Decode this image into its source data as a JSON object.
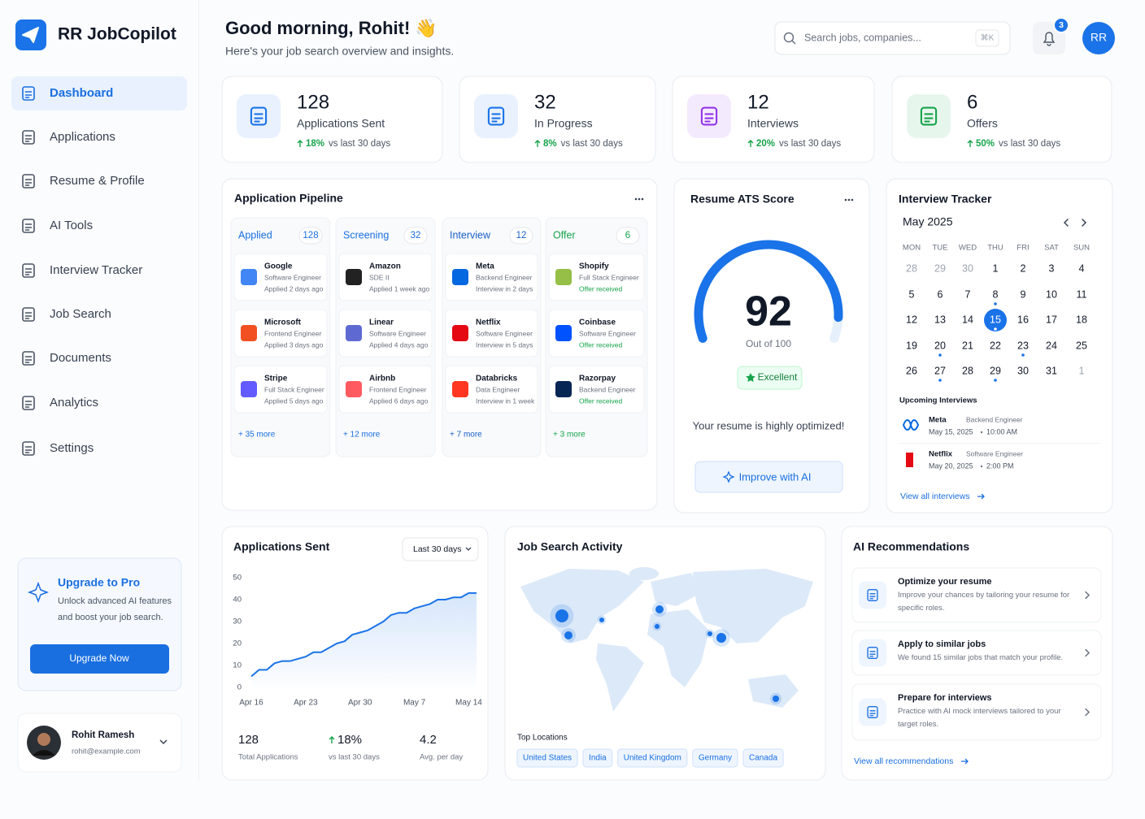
{
  "brand": "RR JobCopilot",
  "nav": [
    "Dashboard",
    "Applications",
    "Resume & Profile",
    "AI Tools",
    "Interview Tracker",
    "Job Search",
    "Documents",
    "Analytics",
    "Settings"
  ],
  "upgrade": {
    "title": "Upgrade to Pro",
    "text": "Unlock advanced AI features and boost your job search.",
    "button": "Upgrade Now"
  },
  "user": {
    "name": "Rohit Ramesh",
    "email": "rohit@example.com"
  },
  "header": {
    "greeting": "Good morning, Rohit! 👋",
    "subtitle": "Here's your job search overview and insights.",
    "search_placeholder": "Search jobs, companies...",
    "shortcut": "⌘K",
    "notifications": 3,
    "avatar": "RR"
  },
  "stats": [
    {
      "value": 128,
      "label": "Applications Sent",
      "change": "18%",
      "period": "vs last 30 days",
      "color": "#1a73e8"
    },
    {
      "value": 32,
      "label": "In Progress",
      "change": "8%",
      "period": "vs last 30 days",
      "color": "#1a73e8"
    },
    {
      "value": 12,
      "label": "Interviews",
      "change": "20%",
      "period": "vs last 30 days",
      "color": "#9333ea"
    },
    {
      "value": 6,
      "label": "Offers",
      "change": "50%",
      "period": "vs last 30 days",
      "color": "#16a34a"
    }
  ],
  "pipeline": {
    "title": "Application Pipeline",
    "columns": [
      {
        "name": "Applied",
        "count": 128,
        "color": "#1a6fe0",
        "more": "+ 35 more",
        "items": [
          {
            "company": "Google",
            "role": "Software Engineer",
            "meta": "Applied 2 days ago",
            "logo": "#4285f4"
          },
          {
            "company": "Microsoft",
            "role": "Frontend Engineer",
            "meta": "Applied 3 days ago",
            "logo": "#f25022"
          },
          {
            "company": "Stripe",
            "role": "Full Stack Engineer",
            "meta": "Applied 5 days ago",
            "logo": "#635bff"
          }
        ]
      },
      {
        "name": "Screening",
        "count": 32,
        "color": "#1a6fe0",
        "more": "+ 12 more",
        "items": [
          {
            "company": "Amazon",
            "role": "SDE II",
            "meta": "Applied 1 week ago",
            "logo": "#222222"
          },
          {
            "company": "Linear",
            "role": "Software Engineer",
            "meta": "Applied 4 days ago",
            "logo": "#5e6ad2"
          },
          {
            "company": "Airbnb",
            "role": "Frontend Engineer",
            "meta": "Applied 6 days ago",
            "logo": "#ff5a5f"
          }
        ]
      },
      {
        "name": "Interview",
        "count": 12,
        "color": "#1a5fc8",
        "more": "+ 7 more",
        "items": [
          {
            "company": "Meta",
            "role": "Backend Engineer",
            "meta": "Interview in 2 days",
            "logo": "#0668e1"
          },
          {
            "company": "Netflix",
            "role": "Software Engineer",
            "meta": "Interview in 5 days",
            "logo": "#e50914"
          },
          {
            "company": "Databricks",
            "role": "Data Engineer",
            "meta": "Interview in 1 week",
            "logo": "#ff3621"
          }
        ]
      },
      {
        "name": "Offer",
        "count": 6,
        "color": "#16a34a",
        "more": "+ 3 more",
        "items": [
          {
            "company": "Shopify",
            "role": "Full Stack Engineer",
            "meta": "Offer received",
            "logo": "#95bf47"
          },
          {
            "company": "Coinbase",
            "role": "Software Engineer",
            "meta": "Offer received",
            "logo": "#0052ff"
          },
          {
            "company": "Razorpay",
            "role": "Backend Engineer",
            "meta": "Offer received",
            "logo": "#072654"
          }
        ]
      }
    ]
  },
  "ats": {
    "title": "Resume ATS Score",
    "score": 92,
    "range": [
      0,
      100
    ],
    "out_of": "Out of 100",
    "badge": "Excellent",
    "note": "Your resume is highly optimized!",
    "button": "Improve with AI"
  },
  "tracker": {
    "title": "Interview Tracker",
    "month": "May 2025",
    "weekdays": [
      "MON",
      "TUE",
      "WED",
      "THU",
      "FRI",
      "SAT",
      "SUN"
    ],
    "weeks": [
      [
        28,
        29,
        30,
        1,
        2,
        3,
        4
      ],
      [
        5,
        6,
        7,
        8,
        9,
        10,
        11
      ],
      [
        12,
        13,
        14,
        15,
        16,
        17,
        18
      ],
      [
        19,
        20,
        21,
        22,
        23,
        24,
        25
      ],
      [
        26,
        27,
        28,
        29,
        30,
        31,
        1
      ]
    ],
    "selected": 15,
    "event_days": [
      8,
      15,
      20,
      23,
      27,
      29
    ],
    "upcoming_title": "Upcoming Interviews",
    "upcoming": [
      {
        "company": "Meta",
        "role": "Backend Engineer",
        "date": "May 15, 2025",
        "time": "10:00 AM",
        "logo": "#0668e1"
      },
      {
        "company": "Netflix",
        "role": "Software Engineer",
        "date": "May 20, 2025",
        "time": "2:00 PM",
        "logo": "#e50914"
      }
    ],
    "link": "View all interviews"
  },
  "chart_data": {
    "type": "line",
    "title": "Applications Sent",
    "filter": "Last 30 days",
    "color": "#1a73e8",
    "categories": [
      "Apr 16",
      null,
      null,
      null,
      null,
      null,
      null,
      "Apr 23",
      null,
      null,
      null,
      null,
      null,
      null,
      "Apr 30",
      null,
      null,
      null,
      null,
      null,
      null,
      "May 7",
      null,
      null,
      null,
      null,
      null,
      null,
      "May 14",
      null
    ],
    "values": [
      5,
      8,
      8,
      11,
      12,
      12,
      13,
      14,
      16,
      16,
      18,
      20,
      21,
      24,
      25,
      26,
      28,
      30,
      33,
      34,
      34,
      36,
      37,
      38,
      40,
      40,
      41,
      41,
      43,
      43
    ],
    "ylim": [
      0,
      50
    ],
    "yticks": [
      0,
      10,
      20,
      30,
      40,
      50
    ],
    "grid": false
  },
  "applications_summary": [
    {
      "value": "128",
      "label": "Total Applications"
    },
    {
      "value": "18%",
      "label": "vs last 30 days"
    },
    {
      "value": "4.2",
      "label": "Avg. per day"
    }
  ],
  "activity": {
    "title": "Job Search Activity",
    "locations_title": "Top Locations",
    "locations": [
      "United States",
      "India",
      "United Kingdom",
      "Germany",
      "Canada"
    ]
  },
  "recommendations": {
    "title": "AI Recommendations",
    "items": [
      {
        "title": "Optimize your resume",
        "text": "Improve your chances by tailoring your resume for specific roles."
      },
      {
        "title": "Apply to similar jobs",
        "text": "We found 15 similar jobs that match your profile."
      },
      {
        "title": "Prepare for interviews",
        "text": "Practice with AI mock interviews tailored to your target roles."
      }
    ],
    "link": "View all recommendations"
  }
}
